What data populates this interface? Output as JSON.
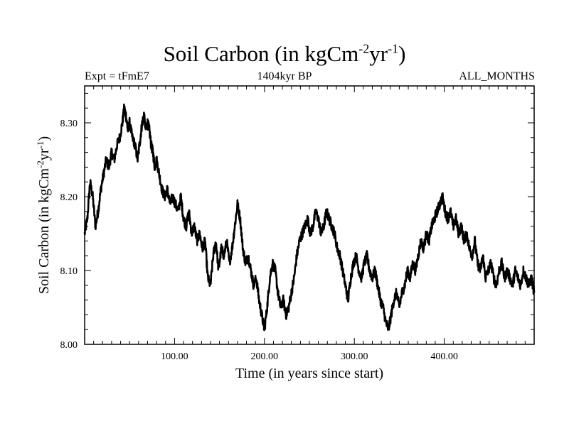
{
  "header": {
    "title": "Soil Carbon (in kgCm",
    "title_sup1": "-2",
    "title_mid": "yr",
    "title_sup2": "-1",
    "title_end": ")",
    "expt": "Expt = tFmE7",
    "period": "1404kyr BP",
    "months": "ALL_MONTHS"
  },
  "chart_data": {
    "type": "line",
    "title": "Soil Carbon (in kgCm-2yr-1)",
    "xlabel": "Time (in years since start)",
    "ylabel": "Soil Carbon (in kgCm-2yr-1)",
    "ylabel_parts": [
      "Soil Carbon (in kgCm",
      "-2",
      "yr",
      "-1",
      ")"
    ],
    "xlim": [
      0,
      500
    ],
    "ylim": [
      8.0,
      8.35
    ],
    "xticks": [
      100,
      200,
      300,
      400
    ],
    "xtick_labels": [
      "100.00",
      "200.00",
      "300.00",
      "400.00"
    ],
    "yticks": [
      8.0,
      8.1,
      8.2,
      8.3
    ],
    "ytick_labels": [
      "8.00",
      "8.10",
      "8.20",
      "8.30"
    ],
    "grid": false,
    "series": [
      {
        "color": "#000000",
        "x": [
          0,
          3,
          6,
          9,
          12,
          15,
          18,
          21,
          24,
          27,
          30,
          33,
          36,
          39,
          42,
          44,
          46,
          48,
          50,
          53,
          56,
          59,
          62,
          64,
          66,
          68,
          70,
          72,
          74,
          76,
          78,
          80,
          83,
          86,
          89,
          92,
          95,
          98,
          101,
          104,
          107,
          110,
          113,
          116,
          119,
          122,
          125,
          128,
          131,
          134,
          137,
          140,
          143,
          146,
          149,
          152,
          155,
          158,
          161,
          164,
          167,
          170,
          173,
          176,
          179,
          182,
          185,
          188,
          191,
          194,
          197,
          200,
          203,
          206,
          209,
          212,
          215,
          218,
          221,
          224,
          227,
          230,
          233,
          236,
          239,
          242,
          245,
          248,
          251,
          254,
          257,
          260,
          263,
          266,
          269,
          272,
          275,
          278,
          281,
          284,
          287,
          290,
          293,
          296,
          299,
          302,
          305,
          308,
          311,
          314,
          317,
          320,
          323,
          326,
          329,
          332,
          335,
          338,
          341,
          344,
          347,
          350,
          353,
          356,
          359,
          362,
          365,
          368,
          371,
          374,
          377,
          380,
          383,
          386,
          389,
          392,
          395,
          398,
          401,
          404,
          407,
          410,
          413,
          416,
          419,
          422,
          425,
          428,
          431,
          434,
          437,
          440,
          443,
          446,
          449,
          452,
          455,
          458,
          461,
          464,
          467,
          470,
          473,
          476,
          479,
          482,
          485,
          488,
          491,
          494,
          497,
          500
        ],
        "values": [
          8.15,
          8.17,
          8.22,
          8.2,
          8.16,
          8.18,
          8.21,
          8.23,
          8.25,
          8.24,
          8.26,
          8.25,
          8.27,
          8.28,
          8.3,
          8.32,
          8.31,
          8.29,
          8.3,
          8.28,
          8.27,
          8.25,
          8.28,
          8.3,
          8.31,
          8.29,
          8.3,
          8.29,
          8.27,
          8.26,
          8.24,
          8.25,
          8.23,
          8.21,
          8.2,
          8.21,
          8.19,
          8.2,
          8.19,
          8.18,
          8.2,
          8.17,
          8.16,
          8.18,
          8.15,
          8.16,
          8.14,
          8.15,
          8.13,
          8.14,
          8.09,
          8.08,
          8.12,
          8.14,
          8.1,
          8.13,
          8.12,
          8.14,
          8.11,
          8.13,
          8.16,
          8.19,
          8.17,
          8.13,
          8.11,
          8.12,
          8.1,
          8.08,
          8.09,
          8.06,
          8.04,
          8.02,
          8.05,
          8.09,
          8.11,
          8.1,
          8.07,
          8.05,
          8.06,
          8.04,
          8.05,
          8.07,
          8.09,
          8.12,
          8.14,
          8.15,
          8.16,
          8.17,
          8.15,
          8.16,
          8.18,
          8.17,
          8.15,
          8.16,
          8.18,
          8.17,
          8.16,
          8.15,
          8.13,
          8.12,
          8.1,
          8.08,
          8.06,
          8.09,
          8.11,
          8.12,
          8.1,
          8.09,
          8.11,
          8.12,
          8.1,
          8.09,
          8.1,
          8.08,
          8.06,
          8.05,
          8.03,
          8.02,
          8.04,
          8.06,
          8.07,
          8.05,
          8.07,
          8.08,
          8.1,
          8.09,
          8.11,
          8.1,
          8.12,
          8.14,
          8.13,
          8.15,
          8.14,
          8.16,
          8.17,
          8.18,
          8.19,
          8.2,
          8.18,
          8.17,
          8.18,
          8.16,
          8.17,
          8.15,
          8.16,
          8.14,
          8.15,
          8.13,
          8.12,
          8.14,
          8.11,
          8.1,
          8.12,
          8.09,
          8.1,
          8.11,
          8.09,
          8.08,
          8.1,
          8.11,
          8.09,
          8.1,
          8.09,
          8.08,
          8.1,
          8.09,
          8.08,
          8.1,
          8.09,
          8.08,
          8.09,
          8.07
        ]
      }
    ]
  }
}
